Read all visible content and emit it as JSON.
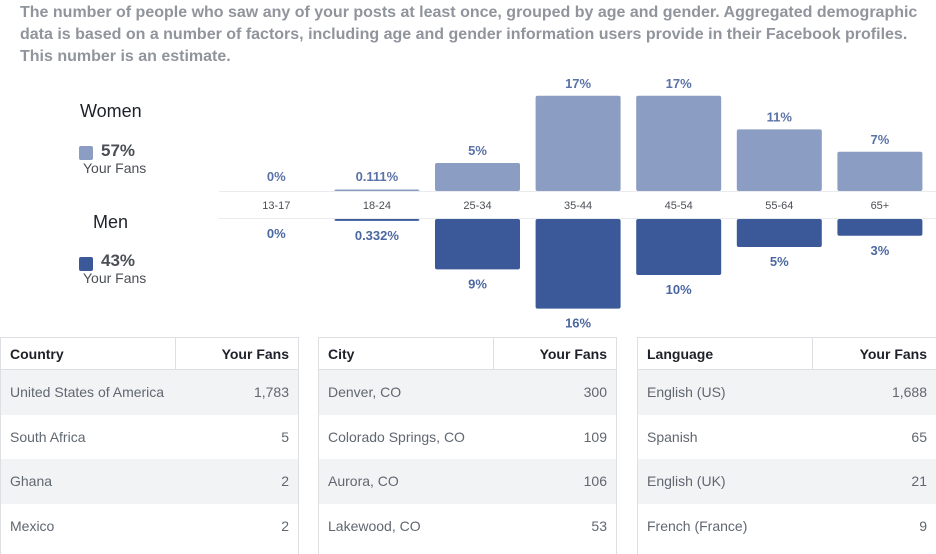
{
  "description": "The number of people who saw any of your posts at least once, grouped by age and gender. Aggregated demographic data is based on a number of factors, including age and gender information users provide in their Facebook profiles. This number is an estimate.",
  "legend": {
    "women": {
      "label": "Women",
      "pct": "57%",
      "sub": "Your Fans",
      "color": "#8b9dc3"
    },
    "men": {
      "label": "Men",
      "pct": "43%",
      "sub": "Your Fans",
      "color": "#3b5998"
    }
  },
  "chart_data": {
    "type": "bar",
    "categories": [
      "13-17",
      "18-24",
      "25-34",
      "35-44",
      "45-54",
      "55-64",
      "65+"
    ],
    "series": [
      {
        "name": "Women",
        "values": [
          0,
          0.111,
          5,
          17,
          17,
          11,
          7
        ],
        "labels": [
          "0%",
          "0.111%",
          "5%",
          "17%",
          "17%",
          "11%",
          "7%"
        ],
        "color": "#8b9dc3"
      },
      {
        "name": "Men",
        "values": [
          0,
          0.332,
          9,
          16,
          10,
          5,
          3
        ],
        "labels": [
          "0%",
          "0.332%",
          "9%",
          "16%",
          "10%",
          "5%",
          "3%"
        ],
        "color": "#3b5998"
      }
    ]
  },
  "tables": [
    {
      "header": "Country",
      "fans_header": "Your Fans",
      "rows": [
        {
          "name": "United States of America",
          "value": "1,783"
        },
        {
          "name": "South Africa",
          "value": "5"
        },
        {
          "name": "Ghana",
          "value": "2"
        },
        {
          "name": "Mexico",
          "value": "2"
        }
      ]
    },
    {
      "header": "City",
      "fans_header": "Your Fans",
      "rows": [
        {
          "name": "Denver, CO",
          "value": "300"
        },
        {
          "name": "Colorado Springs, CO",
          "value": "109"
        },
        {
          "name": "Aurora, CO",
          "value": "106"
        },
        {
          "name": "Lakewood, CO",
          "value": "53"
        }
      ]
    },
    {
      "header": "Language",
      "fans_header": "Your Fans",
      "rows": [
        {
          "name": "English (US)",
          "value": "1,688"
        },
        {
          "name": "Spanish",
          "value": "65"
        },
        {
          "name": "English (UK)",
          "value": "21"
        },
        {
          "name": "French (France)",
          "value": "9"
        }
      ]
    }
  ]
}
